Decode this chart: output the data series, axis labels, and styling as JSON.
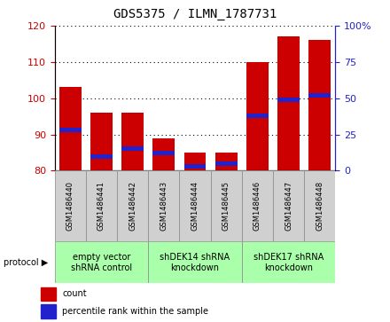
{
  "title": "GDS5375 / ILMN_1787731",
  "samples": [
    "GSM1486440",
    "GSM1486441",
    "GSM1486442",
    "GSM1486443",
    "GSM1486444",
    "GSM1486445",
    "GSM1486446",
    "GSM1486447",
    "GSM1486448"
  ],
  "counts": [
    103,
    96,
    96,
    89,
    85,
    85,
    110,
    117,
    116
  ],
  "percentiles": [
    28,
    10,
    15,
    12,
    3,
    5,
    38,
    49,
    52
  ],
  "ymin": 80,
  "ymax": 120,
  "y_ticks": [
    80,
    90,
    100,
    110,
    120
  ],
  "y2min": 0,
  "y2max": 100,
  "y2_ticks": [
    0,
    25,
    50,
    75,
    100
  ],
  "bar_color": "#cc0000",
  "blue_color": "#2222cc",
  "groups": [
    {
      "label": "empty vector\nshRNA control",
      "start": 0,
      "end": 3,
      "color": "#aaffaa"
    },
    {
      "label": "shDEK14 shRNA\nknockdown",
      "start": 3,
      "end": 6,
      "color": "#aaffaa"
    },
    {
      "label": "shDEK17 shRNA\nknockdown",
      "start": 6,
      "end": 9,
      "color": "#aaffaa"
    }
  ],
  "bar_color_left": "#cc0000",
  "y2label_color": "#2222cc",
  "bar_width": 0.7,
  "legend_count_label": "count",
  "legend_percentile_label": "percentile rank within the sample",
  "protocol_label": "protocol",
  "sample_box_color": "#d0d0d0",
  "title_fontsize": 10,
  "tick_fontsize": 8,
  "sample_fontsize": 6,
  "group_fontsize": 7
}
